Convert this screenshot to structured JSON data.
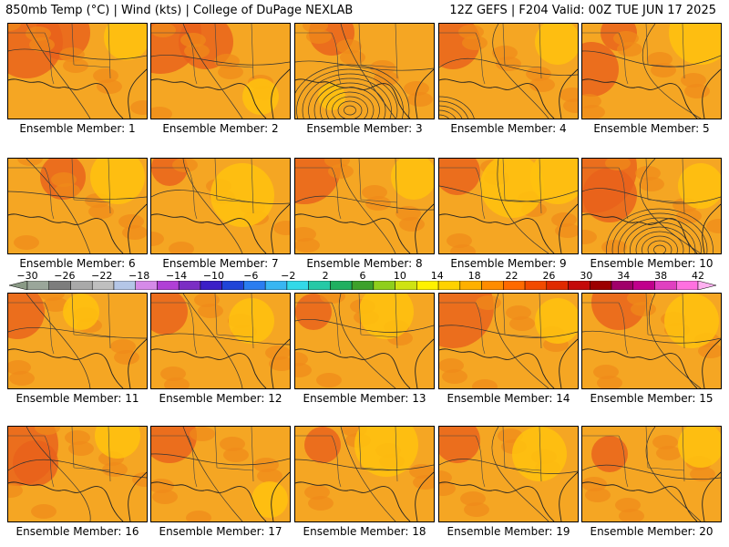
{
  "header": {
    "left": "850mb Temp (°C) | Wind (kts) | College of DuPage NEXLAB",
    "right": "12Z GEFS | F204 Valid: 00Z TUE JUN 17 2025"
  },
  "colorbar": {
    "labels": [
      "−30",
      "−26",
      "−22",
      "−18",
      "−14",
      "−10",
      "−6",
      "−2",
      "2",
      "6",
      "10",
      "14",
      "18",
      "22",
      "26",
      "30",
      "34",
      "38",
      "42"
    ],
    "colors": [
      "#8a9a86",
      "#9aa69a",
      "#7d7d7d",
      "#a9a9a9",
      "#bfbfbf",
      "#b4c6e7",
      "#d58ae8",
      "#b03fd6",
      "#7b2ec4",
      "#3b1fc7",
      "#1f44d8",
      "#2a7df0",
      "#38b6f2",
      "#33d9e8",
      "#25c9a6",
      "#20b060",
      "#3da12b",
      "#8fcf1c",
      "#cfe312",
      "#fff200",
      "#ffd200",
      "#ffb000",
      "#ff8c00",
      "#ff6a00",
      "#f24a00",
      "#e02a00",
      "#c40a0a",
      "#9c0000",
      "#a0006a",
      "#c0008c",
      "#e040c0",
      "#ff70e0",
      "#ffb0f0"
    ]
  },
  "members": [
    {
      "label": "Ensemble Member: 1"
    },
    {
      "label": "Ensemble Member: 2"
    },
    {
      "label": "Ensemble Member: 3"
    },
    {
      "label": "Ensemble Member: 4"
    },
    {
      "label": "Ensemble Member: 5"
    },
    {
      "label": "Ensemble Member: 6"
    },
    {
      "label": "Ensemble Member: 7"
    },
    {
      "label": "Ensemble Member: 8"
    },
    {
      "label": "Ensemble Member: 9"
    },
    {
      "label": "Ensemble Member: 10"
    },
    {
      "label": "Ensemble Member: 11"
    },
    {
      "label": "Ensemble Member: 12"
    },
    {
      "label": "Ensemble Member: 13"
    },
    {
      "label": "Ensemble Member: 14"
    },
    {
      "label": "Ensemble Member: 15"
    },
    {
      "label": "Ensemble Member: 16"
    },
    {
      "label": "Ensemble Member: 17"
    },
    {
      "label": "Ensemble Member: 18"
    },
    {
      "label": "Ensemble Member: 19"
    },
    {
      "label": "Ensemble Member: 20"
    }
  ]
}
